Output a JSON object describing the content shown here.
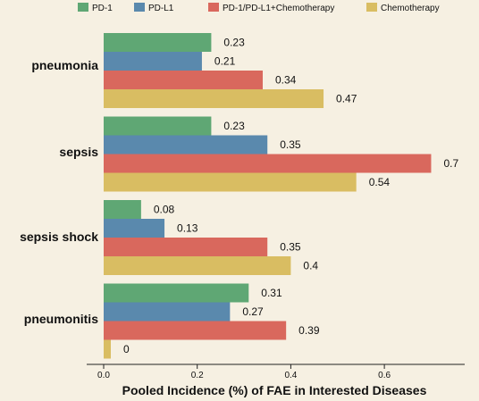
{
  "chart_data": {
    "type": "bar",
    "orientation": "horizontal",
    "categories": [
      "pneumonia",
      "sepsis",
      "sepsis shock",
      "pneumonitis"
    ],
    "series": [
      {
        "name": "PD-1",
        "color": "#5fa774",
        "values": [
          0.23,
          0.23,
          0.08,
          0.31
        ]
      },
      {
        "name": "PD-L1",
        "color": "#5a89ad",
        "values": [
          0.21,
          0.35,
          0.13,
          0.27
        ]
      },
      {
        "name": "PD-1/PD-L1+Chemotherapy",
        "color": "#d9685d",
        "values": [
          0.34,
          0.7,
          0.35,
          0.39
        ]
      },
      {
        "name": "Chemotherapy",
        "color": "#d9bd62",
        "values": [
          0.47,
          0.54,
          0.4,
          0.0
        ]
      }
    ],
    "value_labels": [
      [
        "0.23",
        "0.23",
        "0.08",
        "0.31"
      ],
      [
        "0.21",
        "0.35",
        "0.13",
        "0.27"
      ],
      [
        "0.34",
        "0.7",
        "0.35",
        "0.39"
      ],
      [
        "0.47",
        "0.54",
        "0.4",
        "0"
      ]
    ],
    "xlabel": "Pooled Incidence (%) of FAE in Interested Diseases",
    "xticks": [
      0.0,
      0.2,
      0.4,
      0.6
    ],
    "xtick_labels": [
      "0.0",
      "0.2",
      "0.4",
      "0.6"
    ],
    "xlim": [
      -0.04,
      0.78
    ],
    "grid": false,
    "legend_position": "top"
  }
}
